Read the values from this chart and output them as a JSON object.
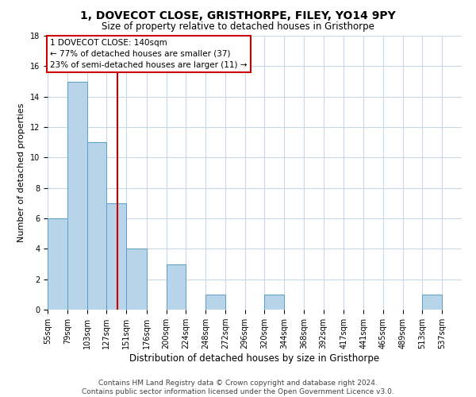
{
  "title": "1, DOVECOT CLOSE, GRISTHORPE, FILEY, YO14 9PY",
  "subtitle": "Size of property relative to detached houses in Gristhorpe",
  "xlabel": "Distribution of detached houses by size in Gristhorpe",
  "ylabel": "Number of detached properties",
  "bin_labels": [
    "55sqm",
    "79sqm",
    "103sqm",
    "127sqm",
    "151sqm",
    "176sqm",
    "200sqm",
    "224sqm",
    "248sqm",
    "272sqm",
    "296sqm",
    "320sqm",
    "344sqm",
    "368sqm",
    "392sqm",
    "417sqm",
    "441sqm",
    "465sqm",
    "489sqm",
    "513sqm",
    "537sqm"
  ],
  "bin_edges": [
    55,
    79,
    103,
    127,
    151,
    176,
    200,
    224,
    248,
    272,
    296,
    320,
    344,
    368,
    392,
    417,
    441,
    465,
    489,
    513,
    537,
    561
  ],
  "counts": [
    6,
    15,
    11,
    7,
    4,
    0,
    3,
    0,
    1,
    0,
    0,
    1,
    0,
    0,
    0,
    0,
    0,
    0,
    0,
    1,
    0
  ],
  "bar_color": "#b8d4e8",
  "bar_edge_color": "#5a9ec9",
  "reference_line_x": 140,
  "reference_line_color": "#cc0000",
  "annotation_box_color": "#cc0000",
  "annotation_lines": [
    "1 DOVECOT CLOSE: 140sqm",
    "← 77% of detached houses are smaller (37)",
    "23% of semi-detached houses are larger (11) →"
  ],
  "ylim": [
    0,
    18
  ],
  "yticks": [
    0,
    2,
    4,
    6,
    8,
    10,
    12,
    14,
    16,
    18
  ],
  "footer_line1": "Contains HM Land Registry data © Crown copyright and database right 2024.",
  "footer_line2": "Contains public sector information licensed under the Open Government Licence v3.0.",
  "background_color": "#ffffff",
  "grid_color": "#c8d8e8",
  "title_fontsize": 10,
  "subtitle_fontsize": 8.5,
  "xlabel_fontsize": 8.5,
  "ylabel_fontsize": 8,
  "footer_fontsize": 6.5,
  "tick_fontsize": 7,
  "annotation_fontsize": 7.5
}
